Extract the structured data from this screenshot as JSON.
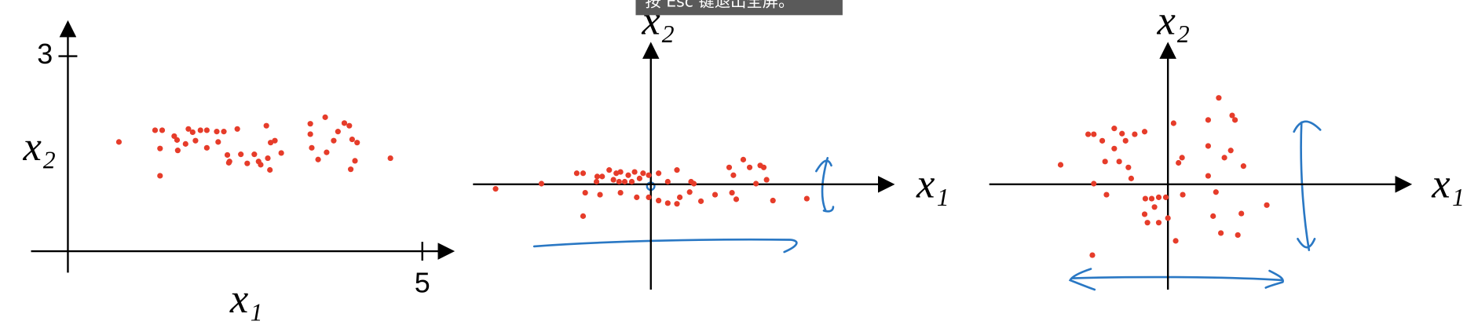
{
  "overlay_text": "按 Esc 键退出全屏。",
  "chart_data": [
    {
      "type": "scatter",
      "x_label": "x₁",
      "y_label": "x₂",
      "color": "#e63c2a",
      "xlim": [
        -0.52,
        5.41
      ],
      "ylim": [
        -0.33,
        3.5
      ],
      "xticks": [
        5
      ],
      "yticks": [
        3
      ],
      "x": [
        0.72,
        1.23,
        1.33,
        1.5,
        1.54,
        1.7,
        1.76,
        1.87,
        1.96,
        2.1,
        2.2,
        2.39,
        2.8,
        3.42,
        3.63,
        3.9,
        3.97,
        1.3,
        1.55,
        1.66,
        1.8,
        1.96,
        2.12,
        2.25,
        2.28,
        2.44,
        2.53,
        2.63,
        2.69,
        2.82,
        2.86,
        2.92,
        3.01,
        2.85,
        3.42,
        3.44,
        3.53,
        3.65,
        3.75,
        3.81,
        4.01,
        4.08,
        4.05,
        3.99,
        4.55,
        1.3,
        2.27,
        2.72
      ],
      "y": [
        1.68,
        1.86,
        1.86,
        1.77,
        1.71,
        1.88,
        1.83,
        1.86,
        1.86,
        1.84,
        1.84,
        1.88,
        1.93,
        1.96,
        2.06,
        1.97,
        1.93,
        1.58,
        1.55,
        1.65,
        1.7,
        1.59,
        1.68,
        1.48,
        1.38,
        1.49,
        1.35,
        1.49,
        1.38,
        1.43,
        1.67,
        1.7,
        1.51,
        1.25,
        1.8,
        1.59,
        1.41,
        1.52,
        1.7,
        1.84,
        1.72,
        1.67,
        1.39,
        1.26,
        1.43,
        1.16,
        1.36,
        1.33
      ]
    },
    {
      "type": "scatter",
      "x_label": "x₁",
      "y_label": "x₂",
      "color": "#e63c2a",
      "xlim": [
        -2.52,
        3.41
      ],
      "ylim": [
        -1.62,
        2.14
      ],
      "x": [
        -2.2,
        -1.55,
        -1.05,
        -0.96,
        -0.76,
        -0.77,
        -0.69,
        -0.59,
        -0.49,
        -0.43,
        -0.32,
        -0.23,
        -0.11,
        -0.03,
        -0.53,
        -0.45,
        -0.37,
        -0.27,
        -0.16,
        0.11,
        0.24,
        0.37,
        0.57,
        0.61,
        1.11,
        1.17,
        1.31,
        1.4,
        1.55,
        1.6,
        1.64,
        1.49,
        -0.93,
        -0.72,
        -0.43,
        -0.03,
        0.11,
        0.24,
        0.37,
        0.41,
        0.55,
        0.71,
        0.91,
        1.21,
        1.73,
        2.21,
        -0.96,
        -0.2,
        1.15
      ],
      "y": [
        -0.07,
        0.01,
        0.17,
        0.17,
        0.12,
        0.04,
        0.12,
        0.22,
        0.17,
        0.19,
        0.14,
        0.19,
        0.17,
        0.14,
        0.07,
        0.04,
        0.04,
        0.04,
        0.09,
        0.17,
        0.04,
        0.22,
        0.04,
        0.01,
        0.26,
        0.14,
        0.38,
        0.26,
        0.29,
        0.26,
        0.07,
        0.01,
        -0.13,
        -0.16,
        -0.13,
        -0.2,
        -0.25,
        -0.29,
        -0.3,
        -0.2,
        -0.12,
        -0.26,
        -0.16,
        -0.23,
        -0.25,
        -0.22,
        -0.49,
        -0.2,
        -0.13
      ]
    },
    {
      "type": "scatter",
      "x_label": "x₁",
      "y_label": "x₂",
      "color": "#e63c2a",
      "xlim": [
        -2.53,
        3.41
      ],
      "ylim": [
        -1.62,
        2.14
      ],
      "x": [
        -1.52,
        -1.13,
        -1.05,
        -0.93,
        -0.76,
        -0.65,
        -0.6,
        -0.47,
        -0.33,
        -0.76,
        -0.89,
        -0.69,
        -0.56,
        -1.05,
        -0.87,
        -0.52,
        -0.32,
        -0.23,
        -0.19,
        -0.13,
        -0.03,
        -0.33,
        -0.29,
        -0.13,
        0,
        0.08,
        0.15,
        0.2,
        0.21,
        0.11,
        0.57,
        0.57,
        0.57,
        0.8,
        0.91,
        0.95,
        0.89,
        1.07,
        0.68,
        0.64,
        0.75,
        1.04,
        0.99,
        1.4,
        0.72,
        -1.07
      ],
      "y": [
        0.3,
        0.77,
        0.77,
        0.67,
        0.86,
        0.78,
        0.67,
        0.77,
        0.81,
        0.55,
        0.35,
        0.35,
        0.26,
        0.01,
        -0.16,
        0.09,
        -0.22,
        -0.22,
        -0.35,
        -0.2,
        -0.2,
        -0.46,
        -0.59,
        -0.59,
        -0.52,
        0.94,
        0.33,
        0.41,
        -0.16,
        -0.87,
        0.99,
        0.59,
        0.13,
        0.41,
        1.06,
        0.99,
        0.52,
        0.28,
        -0.12,
        -0.49,
        -0.75,
        -0.45,
        -0.78,
        -0.32,
        1.33,
        -1.09
      ]
    }
  ]
}
